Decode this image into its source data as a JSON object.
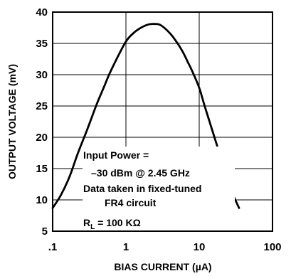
{
  "chart_data": {
    "type": "line",
    "x_scale": "log",
    "xlabel_prefix": "BIAS CURRENT (",
    "xlabel_unit_symbol": "µ",
    "xlabel_suffix": "A)",
    "ylabel": "OUTPUT VOLTAGE (mV)",
    "xlim": [
      0.1,
      100
    ],
    "ylim": [
      5,
      40
    ],
    "x_ticks": [
      0.1,
      1,
      10,
      100
    ],
    "x_tick_labels": [
      ".1",
      "1",
      "10",
      "100"
    ],
    "y_ticks": [
      5,
      10,
      15,
      20,
      25,
      30,
      35,
      40
    ],
    "y_tick_labels": [
      "5",
      "10",
      "15",
      "20",
      "25",
      "30",
      "35",
      "40"
    ],
    "grid": true,
    "series": [
      {
        "x": [
          0.1,
          0.13,
          0.17,
          0.22,
          0.3,
          0.4,
          0.5,
          0.6,
          0.8,
          1.0,
          1.2,
          1.5,
          2.0,
          2.5,
          3.0,
          4.0,
          5.0,
          6.0,
          7.0,
          8.0,
          10.0,
          12.0,
          15.0,
          20.0,
          25.0,
          30.0,
          35.0
        ],
        "y": [
          8.7,
          10.8,
          13.7,
          17.4,
          21.4,
          25.3,
          28.0,
          30.2,
          33.2,
          35.3,
          36.4,
          37.3,
          38.0,
          38.1,
          37.9,
          36.6,
          35.1,
          33.6,
          32.0,
          30.6,
          27.9,
          24.8,
          21.2,
          16.5,
          12.6,
          10.4,
          8.7
        ],
        "color": "#000000"
      }
    ],
    "annotations": [
      "Input Power =",
      "–30 dBm @ 2.45 GHz",
      "Data taken in fixed-tuned",
      "FR4 circuit"
    ],
    "annotation_rl": {
      "symbol": "R",
      "subscript": "L",
      "value_prefix": " = 100 K",
      "unit_symbol": "Ω"
    }
  }
}
